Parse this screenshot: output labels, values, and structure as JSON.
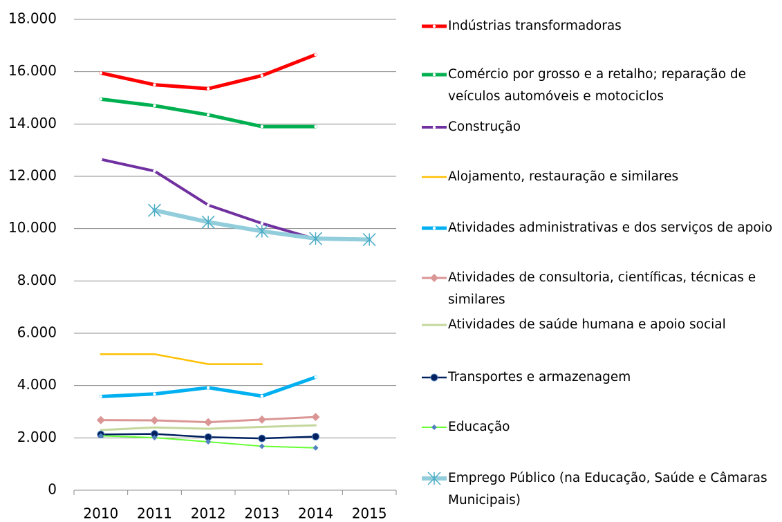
{
  "chart_data": {
    "type": "line",
    "categories": [
      "2010",
      "2011",
      "2012",
      "2013",
      "2014",
      "2015"
    ],
    "ylim": [
      0,
      18000
    ],
    "yticks": [
      0,
      {
        "value": 2000,
        "label": "2.000"
      },
      {
        "value": 4000,
        "label": "4.000"
      },
      {
        "value": 6000,
        "label": "6.000"
      },
      {
        "value": 8000,
        "label": "8.000"
      },
      {
        "value": 10000,
        "label": "10.000"
      },
      {
        "value": 12000,
        "label": "12.000"
      },
      {
        "value": 14000,
        "label": "14.000"
      },
      {
        "value": 16000,
        "label": "16.000"
      },
      {
        "value": 18000,
        "label": "18.000"
      }
    ],
    "grid": true,
    "legend": "right",
    "series": [
      {
        "name": "Indústrias transformadoras",
        "color": "#ff0000",
        "values": [
          15950,
          15500,
          15350,
          15850,
          16650,
          null
        ]
      },
      {
        "name": "Comércio por grosso e a retalho; reparação de veículos automóveis e motociclos",
        "color": "#00b050",
        "values": [
          14950,
          14700,
          14350,
          13900,
          13900,
          null
        ]
      },
      {
        "name": "Construção",
        "color": "#7030a0",
        "values": [
          12650,
          12200,
          10900,
          10200,
          9600,
          null
        ]
      },
      {
        "name": "Alojamento, restauração e similares",
        "color": "#ffc000",
        "values": [
          5200,
          5200,
          4820,
          4820,
          null,
          null
        ]
      },
      {
        "name": "Atividades administrativas e dos serviços de apoio",
        "color": "#00b0f0",
        "values": [
          3580,
          3680,
          3920,
          3600,
          4320,
          null
        ]
      },
      {
        "name": "Atividades de consultoria, científicas, técnicas e similares",
        "color": "#da9694",
        "values": [
          2680,
          2670,
          2600,
          2700,
          2800,
          null
        ]
      },
      {
        "name": "Atividades de saúde humana e apoio social",
        "color": "#c4d79b",
        "values": [
          2300,
          2400,
          2350,
          2420,
          2480,
          null
        ]
      },
      {
        "name": "Transportes e armazenagem",
        "color": "#002060",
        "values": [
          2130,
          2150,
          2030,
          1980,
          2050,
          null
        ]
      },
      {
        "name": "Educação",
        "color": "#66ff33",
        "values": [
          2080,
          2010,
          1850,
          1680,
          1620,
          null
        ]
      },
      {
        "name": "Emprego Público (na Educação, Saúde e Câmaras Municipais)",
        "color": "#92cddc",
        "values": [
          null,
          10700,
          10250,
          9900,
          9620,
          9580
        ]
      }
    ]
  }
}
